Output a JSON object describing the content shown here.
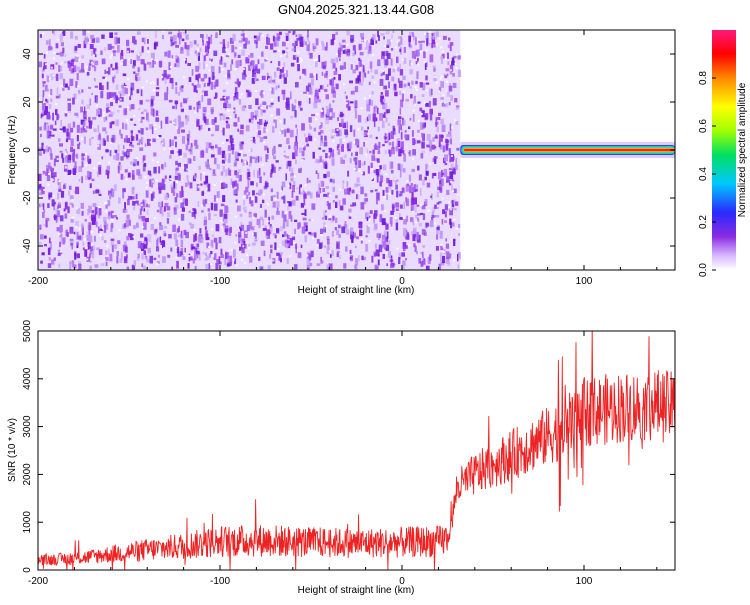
{
  "title": "GN04.2025.321.13.44.G08",
  "colors": {
    "snr_line": "#ee2222",
    "noise_base": "#8a2be2",
    "axis": "#000000"
  },
  "chart_data": [
    {
      "type": "heatmap",
      "xlabel": "Height of straight line (km)",
      "ylabel": "Frequency (Hz)",
      "xlim": [
        -200,
        150
      ],
      "ylim": [
        -50,
        50
      ],
      "xticks": [
        "-200",
        "-100",
        "0",
        "100"
      ],
      "yticks": [
        "-40",
        "-20",
        "0",
        "20",
        "40"
      ],
      "noise_region": {
        "x": [
          -200,
          32
        ],
        "y": [
          -50,
          50
        ],
        "amplitude": [
          0.05,
          0.3
        ]
      },
      "signal_band": {
        "x": [
          32,
          150
        ],
        "frequency": 0,
        "amplitude": 1.0
      },
      "colorbar": {
        "label": "Normalized spectral amplitude",
        "range": [
          0,
          1
        ],
        "ticks": [
          "0.0",
          "0.2",
          "0.4",
          "0.6",
          "0.8"
        ],
        "colors": [
          "#ffffff",
          "#d8b8ff",
          "#8a2be2",
          "#2a2aff",
          "#00c8ff",
          "#00e060",
          "#a0ff00",
          "#ffff00",
          "#ff8800",
          "#ff0000",
          "#ff1a7a"
        ]
      }
    },
    {
      "type": "line",
      "xlabel": "Height of straight line (km)",
      "ylabel": "SNR (10 * v/v)",
      "xlim": [
        -200,
        150
      ],
      "ylim": [
        0,
        5000
      ],
      "xticks": [
        "-200",
        "-100",
        "0",
        "100"
      ],
      "yticks": [
        "0",
        "1000",
        "2000",
        "3000",
        "4000",
        "5000"
      ],
      "series": [
        {
          "x": [
            -200,
            -175,
            -150,
            -125,
            -100,
            -75,
            -50,
            -25,
            0,
            20,
            25,
            27,
            30,
            40,
            60,
            80,
            90,
            95,
            100,
            110,
            120,
            140,
            150
          ],
          "y": [
            200,
            260,
            380,
            480,
            600,
            620,
            580,
            560,
            580,
            600,
            650,
            900,
            1700,
            2000,
            2400,
            2800,
            3000,
            3100,
            3300,
            3350,
            3400,
            3450,
            3400
          ]
        }
      ]
    }
  ]
}
